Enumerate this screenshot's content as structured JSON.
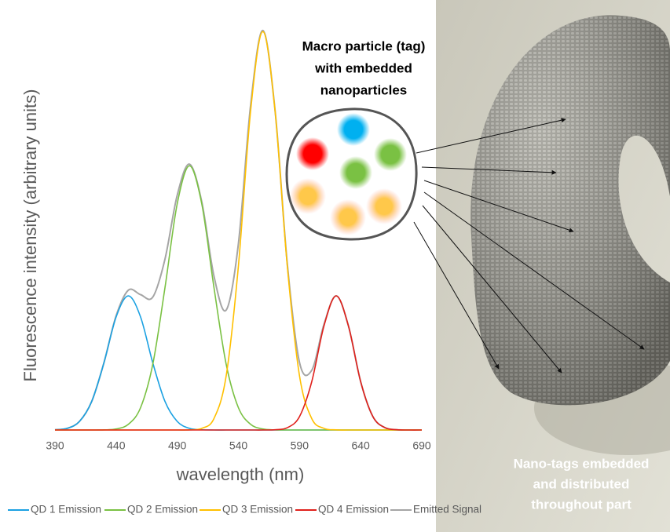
{
  "chart_data": {
    "type": "line",
    "x_label": "wavelength (nm)",
    "y_label": "Fluorescence intensity (arbitrary units)",
    "x": [
      390,
      400,
      410,
      420,
      430,
      440,
      450,
      460,
      470,
      480,
      490,
      500,
      510,
      520,
      530,
      540,
      550,
      560,
      570,
      580,
      590,
      600,
      610,
      620,
      630,
      640,
      650,
      660,
      670,
      680,
      690
    ],
    "xlim": [
      390,
      690
    ],
    "xticks": [
      390,
      440,
      490,
      540,
      590,
      640,
      690
    ],
    "ylim": [
      0,
      100
    ],
    "grid": false,
    "legend": "bottom",
    "series": [
      {
        "name": "QD 1 Emission",
        "color": "#1ba1e2",
        "values": [
          0.07,
          0.4,
          2.1,
          7.0,
          16.5,
          27.8,
          33,
          27.8,
          16.5,
          7.0,
          2.1,
          0.4,
          0.07,
          0,
          0,
          0,
          0,
          0,
          0,
          0,
          0,
          0,
          0,
          0,
          0,
          0,
          0,
          0,
          0,
          0,
          0
        ]
      },
      {
        "name": "QD 2 Emission",
        "color": "#7ac143",
        "values": [
          0,
          0,
          0,
          0,
          0.03,
          0.25,
          1.4,
          5.5,
          16.2,
          35.1,
          55.7,
          65,
          55.7,
          35.1,
          16.2,
          5.5,
          1.4,
          0.25,
          0.03,
          0,
          0,
          0,
          0,
          0,
          0,
          0,
          0,
          0,
          0,
          0,
          0
        ]
      },
      {
        "name": "QD 3 Emission",
        "color": "#ffc000",
        "values": [
          0,
          0,
          0,
          0,
          0,
          0,
          0,
          0,
          0,
          0,
          0,
          0.03,
          0.4,
          2.8,
          13.3,
          40.3,
          78.5,
          98,
          78.5,
          40.3,
          13.3,
          2.8,
          0.4,
          0.03,
          0,
          0,
          0,
          0,
          0,
          0,
          0
        ]
      },
      {
        "name": "QD 4 Emission",
        "color": "#e0201b",
        "values": [
          0,
          0,
          0,
          0,
          0,
          0,
          0,
          0,
          0,
          0,
          0,
          0,
          0,
          0,
          0,
          0,
          0,
          0,
          0.06,
          0.56,
          3.3,
          11.9,
          25.6,
          33,
          25.6,
          11.9,
          3.3,
          0.56,
          0.06,
          0,
          0
        ]
      },
      {
        "name": "Emitted Signal",
        "color": "#a5a5a5",
        "values": [
          0.07,
          0.4,
          2.1,
          7.0,
          16.5,
          28.1,
          34.4,
          33.3,
          32.7,
          42.1,
          57.8,
          65.4,
          56.2,
          37.9,
          29.5,
          45.8,
          79.9,
          98.3,
          78.6,
          40.9,
          16.6,
          14.7,
          26.0,
          33.0,
          25.6,
          11.9,
          3.3,
          0.56,
          0.06,
          0,
          0
        ]
      }
    ]
  },
  "illustration": {
    "tag_label": [
      "Macro particle (tag)",
      "with embedded",
      "nanoparticles"
    ],
    "part_label": [
      "Nano-tags embedded",
      "and distributed",
      "throughout part"
    ]
  }
}
